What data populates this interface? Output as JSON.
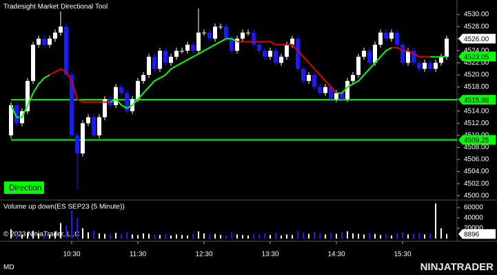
{
  "chart_data": [
    {
      "type": "candlestick",
      "title": "Tradesight Market Directional Tool",
      "open": [
        4510,
        4515,
        4512,
        4514,
        4519,
        4525,
        4526,
        4525,
        4526,
        4527,
        4528,
        4520,
        4510,
        4507,
        4512,
        4513,
        4510,
        4513,
        4516,
        4515,
        4518,
        4517,
        4514,
        4516,
        4519,
        4520,
        4523,
        4521,
        4524,
        4522,
        4523,
        4524,
        4524,
        4525,
        4524,
        4527,
        4527,
        4526,
        4528,
        4528,
        4526,
        4524,
        4526,
        4527,
        4527,
        4525,
        4524,
        4523,
        4524,
        4522,
        4523,
        4525,
        4526,
        4521,
        4519,
        4520,
        4518,
        4517,
        4518,
        4516,
        4517,
        4516,
        4519,
        4520,
        4523,
        4524,
        4522,
        4525,
        4527,
        4526,
        4527,
        4525,
        4522,
        4524,
        4522,
        4521,
        4522,
        4521,
        4522,
        4523
      ],
      "high": [
        4515.5,
        4515.5,
        4514.5,
        4519.5,
        4525.5,
        4526.5,
        4526.5,
        4526.5,
        4527.5,
        4530.5,
        4528.5,
        4520.5,
        4510.5,
        4512.5,
        4513.5,
        4513.5,
        4513.5,
        4516.5,
        4516.5,
        4518.5,
        4518.5,
        4517.5,
        4516.5,
        4519.5,
        4520.5,
        4523.5,
        4523.5,
        4524.5,
        4524.5,
        4523.5,
        4524.5,
        4524.5,
        4525.5,
        4525.5,
        4531,
        4527.5,
        4527.5,
        4528.5,
        4528.5,
        4528.5,
        4526.5,
        4526.5,
        4527.5,
        4527.5,
        4527.5,
        4525.5,
        4524.5,
        4524.5,
        4524.5,
        4523.5,
        4525.5,
        4526.5,
        4526.5,
        4521.5,
        4520.5,
        4520.5,
        4518.5,
        4518.5,
        4518.5,
        4517.5,
        4517.5,
        4519.5,
        4520.5,
        4523.5,
        4524.5,
        4524.5,
        4525.5,
        4527.5,
        4527.5,
        4527.5,
        4527.5,
        4525.5,
        4524.5,
        4524.5,
        4522.5,
        4522.5,
        4522.5,
        4522.5,
        4523.5,
        4526.5
      ],
      "low": [
        4509.5,
        4511.5,
        4511.5,
        4513.5,
        4518.5,
        4524.5,
        4524.5,
        4524.5,
        4525.5,
        4526.5,
        4519.5,
        4509.5,
        4501,
        4506.5,
        4511.5,
        4509.5,
        4509.5,
        4512.5,
        4514.5,
        4514.5,
        4516.5,
        4513.5,
        4513.5,
        4515.5,
        4518.5,
        4519.5,
        4520.5,
        4520.5,
        4521.5,
        4521.5,
        4522.5,
        4523.5,
        4523.5,
        4523.5,
        4523.5,
        4526.5,
        4525.5,
        4525.5,
        4527.5,
        4525.5,
        4523.5,
        4523.5,
        4525.5,
        4526.5,
        4524.5,
        4523.5,
        4522.5,
        4522.5,
        4521.5,
        4521.5,
        4522.5,
        4524.5,
        4520.5,
        4518.5,
        4518.5,
        4517.5,
        4516.5,
        4516.5,
        4515.5,
        4515.5,
        4515.5,
        4515.5,
        4518.5,
        4519.5,
        4522.5,
        4521.5,
        4521.5,
        4524.5,
        4525.5,
        4525.5,
        4524.5,
        4521.5,
        4521.5,
        4521.5,
        4520.5,
        4520.5,
        4520.5,
        4520.5,
        4521.5,
        4522.5
      ],
      "close": [
        4515,
        4512,
        4514,
        4519,
        4525,
        4526,
        4525,
        4526,
        4527,
        4528,
        4520,
        4510,
        4507,
        4512,
        4513,
        4510,
        4513,
        4516,
        4515,
        4518,
        4517,
        4514,
        4516,
        4519,
        4520,
        4523,
        4521,
        4524,
        4522,
        4523,
        4524,
        4524,
        4525,
        4524,
        4527,
        4527,
        4526,
        4528,
        4528,
        4526,
        4524,
        4526,
        4527,
        4527,
        4525,
        4524,
        4523,
        4524,
        4522,
        4523,
        4525,
        4526,
        4521,
        4519,
        4520,
        4518,
        4517,
        4518,
        4516,
        4517,
        4516,
        4519,
        4520,
        4523,
        4524,
        4522,
        4525,
        4527,
        4526,
        4527,
        4525,
        4522,
        4524,
        4522,
        4521,
        4522,
        4521,
        4522,
        4523,
        4526
      ],
      "up_color": "#ffffff",
      "down_color": "#1a1aff",
      "series": [
        {
          "name": "Direction",
          "color": "#00ff00",
          "values": [
            4515,
            4513,
            4513,
            4515,
            4517,
            4518.5,
            4519.5,
            4520,
            null,
            null,
            null,
            null,
            null,
            null,
            null,
            null,
            null,
            null,
            4515.5,
            4516,
            4515,
            4514.5,
            4515,
            4516,
            4517,
            4518,
            4519,
            4519.5,
            4520,
            4521,
            4521.5,
            4522,
            4522.5,
            4523,
            4523.5,
            4524,
            4524.5,
            4525,
            4525.5,
            4526,
            4526,
            4525.5,
            null,
            null,
            null,
            null,
            null,
            null,
            null,
            null,
            null,
            null,
            null,
            null,
            null,
            null,
            null,
            null,
            null,
            4517,
            4517,
            4518,
            4518.5,
            4519,
            4520,
            4521,
            4522,
            4523,
            4524,
            4524.5,
            null,
            null,
            null,
            null,
            null,
            null,
            4523,
            4523,
            4523,
            4523.05
          ]
        },
        {
          "color": "#e00000",
          "values": [
            null,
            null,
            null,
            null,
            null,
            null,
            null,
            4520,
            4520.5,
            4521,
            4520.5,
            4519,
            4516,
            4515.5,
            4515.5,
            4515.5,
            4515.5,
            4515.5,
            4515.5,
            null,
            null,
            null,
            null,
            null,
            null,
            null,
            null,
            null,
            null,
            null,
            null,
            null,
            null,
            null,
            null,
            null,
            null,
            null,
            null,
            null,
            null,
            4525.5,
            4525.5,
            4525.5,
            4525.5,
            4525.5,
            4525.5,
            4525.5,
            4525,
            4525,
            4525,
            4525,
            4524,
            4523,
            4522,
            4521,
            4520,
            4519,
            4518,
            4517,
            null,
            null,
            null,
            null,
            null,
            null,
            null,
            null,
            null,
            4524.5,
            4524.5,
            4524,
            4524,
            4523.5,
            4523,
            4523,
            4523,
            null,
            null,
            null
          ]
        }
      ],
      "levels": [
        4515.88,
        4509.25
      ],
      "level_color": "#00ff00",
      "last_price": {
        "value": 4526,
        "label": "4526.00"
      },
      "ylim": [
        4499.4,
        4532.4
      ],
      "yticks": [
        {
          "value": 4500,
          "label": "4500.00"
        },
        {
          "value": 4502,
          "label": "4502.00"
        },
        {
          "value": 4504,
          "label": "4504.00"
        },
        {
          "value": 4506,
          "label": "4506.00"
        },
        {
          "value": 4508,
          "label": "4508.00"
        },
        {
          "value": 4510,
          "label": "4510.00"
        },
        {
          "value": 4512,
          "label": "4512.00"
        },
        {
          "value": 4514,
          "label": "4514.00"
        },
        {
          "value": 4516,
          "label": "4516.00"
        },
        {
          "value": 4518,
          "label": "4518.00"
        },
        {
          "value": 4520,
          "label": "4520.00"
        },
        {
          "value": 4522,
          "label": "4522.00"
        },
        {
          "value": 4524,
          "label": "4524.00"
        },
        {
          "value": 4526,
          "label": "4526.00"
        },
        {
          "value": 4528,
          "label": "4528.00"
        },
        {
          "value": 4530,
          "label": "4530.00"
        }
      ],
      "xticks": [
        {
          "value": 11,
          "label": "10:30"
        },
        {
          "value": 23,
          "label": "11:30"
        },
        {
          "value": 35,
          "label": "12:30"
        },
        {
          "value": 47,
          "label": "13:30"
        },
        {
          "value": 59,
          "label": "14:30"
        },
        {
          "value": 71,
          "label": "15:30"
        }
      ]
    },
    {
      "type": "bar",
      "title": "Volume up down(ES SEP23 (5 Minute))",
      "annotation": "© 2023 NinjaTrader, LLC",
      "values": [
        18000,
        9000,
        8000,
        12000,
        15000,
        10000,
        9000,
        8000,
        14000,
        30000,
        25000,
        55000,
        40000,
        20000,
        12000,
        15000,
        10000,
        9000,
        8000,
        11000,
        9000,
        12000,
        8000,
        7000,
        10000,
        9000,
        8000,
        7000,
        9000,
        6000,
        8000,
        7000,
        6000,
        9000,
        14000,
        10000,
        8000,
        9000,
        7000,
        6000,
        12000,
        8000,
        7000,
        6000,
        9000,
        8000,
        10000,
        7000,
        11000,
        6000,
        8000,
        7000,
        15000,
        12000,
        9000,
        13000,
        10000,
        8000,
        11000,
        9000,
        12000,
        14000,
        10000,
        9000,
        8000,
        11000,
        9000,
        7000,
        8000,
        6000,
        10000,
        12000,
        8000,
        9000,
        11000,
        8000,
        10000,
        68000,
        20000,
        8896
      ],
      "ylim": [
        0,
        72000
      ],
      "yticks": [
        20000,
        40000,
        60000
      ]
    }
  ],
  "footer": {
    "left": "MD",
    "brand": "NINJATRADER"
  }
}
